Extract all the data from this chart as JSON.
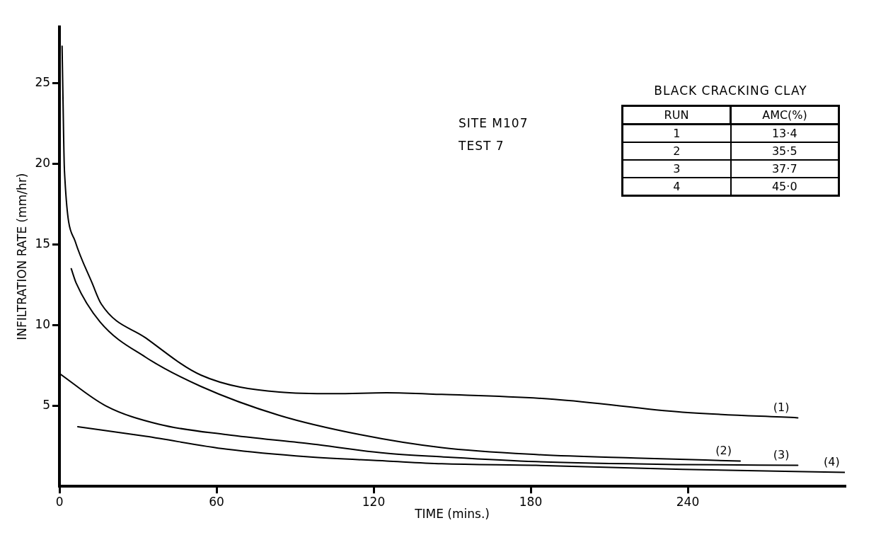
{
  "chart_data": {
    "type": "line",
    "xlabel": "TIME (mins.)",
    "ylabel": "INFILTRATION RATE (mm/hr)",
    "xlim": [
      0,
      300
    ],
    "xticks": [
      0,
      60,
      120,
      180,
      240
    ],
    "ylim": [
      0,
      28.5
    ],
    "yticks": [
      5,
      10,
      15,
      20,
      25
    ],
    "grid": false,
    "legend": false,
    "marker": "none",
    "line_style": "solid",
    "annotations": [
      "SITE M107",
      "TEST 7",
      "BLACK CRACKING CLAY",
      "RUN",
      "AMC(%)",
      "1",
      "13·4",
      "2",
      "35·5",
      "3",
      "37·7",
      "4",
      "45·0"
    ],
    "series": [
      {
        "name": "(1)",
        "color": "#000000",
        "x": [
          1,
          1.3,
          1.9,
          6,
          12.5,
          16,
          33,
          54,
          84,
          105,
          125,
          146,
          189,
          238,
          282
        ],
        "values": [
          27.3,
          24.5,
          19.6,
          15.2,
          12.6,
          11.3,
          9.2,
          6.9,
          5.85,
          5.75,
          5.8,
          5.7,
          5.4,
          4.6,
          4.25
        ]
      },
      {
        "name": "(2)",
        "color": "#000000",
        "x": [
          4.5,
          6.4,
          15.5,
          33,
          54,
          84,
          115,
          146,
          182,
          220,
          260
        ],
        "values": [
          13.5,
          12.6,
          10.2,
          8.0,
          6.2,
          4.4,
          3.2,
          2.4,
          1.97,
          1.75,
          1.57
        ]
      },
      {
        "name": "(3)",
        "color": "#000000",
        "x": [
          0,
          17.6,
          38,
          64,
          95,
          125,
          146,
          182,
          238,
          282
        ],
        "values": [
          7.0,
          5.0,
          3.85,
          3.2,
          2.65,
          2.05,
          1.83,
          1.53,
          1.35,
          1.3
        ]
      },
      {
        "name": "(4)",
        "color": "#000000",
        "x": [
          7,
          33,
          64,
          95,
          125,
          146,
          182,
          238,
          300
        ],
        "values": [
          3.7,
          3.1,
          2.3,
          1.83,
          1.57,
          1.4,
          1.3,
          1.05,
          0.87
        ]
      }
    ]
  }
}
